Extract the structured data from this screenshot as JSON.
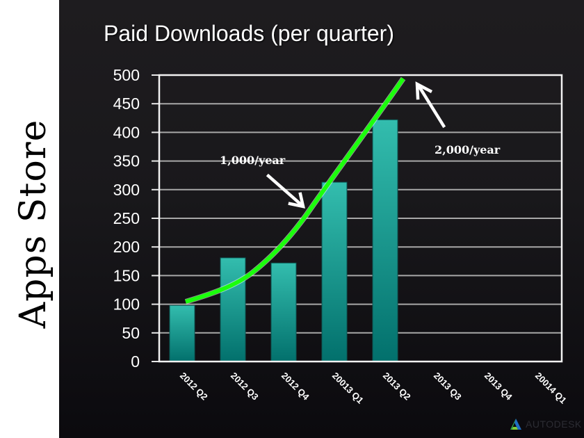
{
  "side_title": "Apps Store",
  "chart_data": {
    "type": "bar",
    "title": "Paid Downloads (per quarter)",
    "xlabel": "",
    "ylabel": "",
    "ylim": [
      0,
      500
    ],
    "yticks": [
      0,
      50,
      100,
      150,
      200,
      250,
      300,
      350,
      400,
      450,
      500
    ],
    "grid": true,
    "categories": [
      "2012 Q2",
      "2012 Q3",
      "2012 Q4",
      "20013 Q1",
      "2013 Q2",
      "2013 Q3",
      "2013 Q4",
      "20014 Q1"
    ],
    "series": [
      {
        "name": "Paid Downloads",
        "values": [
          98,
          181,
          172,
          313,
          422,
          null,
          null,
          null
        ],
        "color": "#20a89c"
      }
    ],
    "trendline": {
      "color": "#1bff0c",
      "description": "hand-drawn green growth curve from 2012 Q2 to ~500 at 2013 Q2"
    },
    "annotations": [
      {
        "text": "1,000/year",
        "arrow": "points down-right to curve"
      },
      {
        "text": "2,000/year",
        "arrow": "points up-left to curve end"
      }
    ]
  },
  "footer": {
    "logo_text": "AUTODESK"
  }
}
